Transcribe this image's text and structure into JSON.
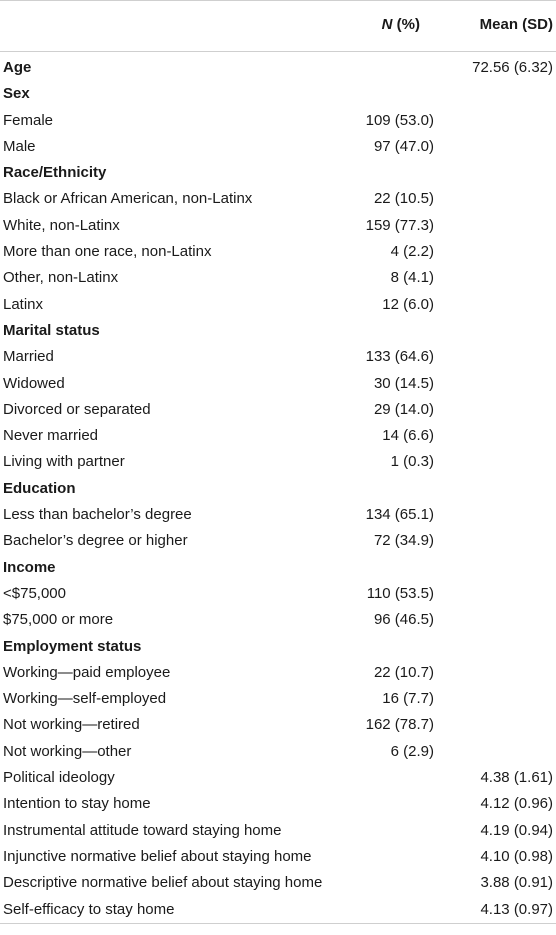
{
  "header": {
    "n_italic": "N",
    "n_suffix": " (%)",
    "mean_label": "Mean (SD)"
  },
  "rows": [
    {
      "label": "Age",
      "section": true,
      "n": "",
      "mean": "72.56 (6.32)"
    },
    {
      "label": "Sex",
      "section": true,
      "n": "",
      "mean": ""
    },
    {
      "label": "Female",
      "section": false,
      "n": "109 (53.0)",
      "mean": ""
    },
    {
      "label": "Male",
      "section": false,
      "n": "97 (47.0)",
      "mean": ""
    },
    {
      "label": "Race/Ethnicity",
      "section": true,
      "n": "",
      "mean": ""
    },
    {
      "label": "Black or African American, non-Latinx",
      "section": false,
      "n": "22 (10.5)",
      "mean": ""
    },
    {
      "label": "White, non-Latinx",
      "section": false,
      "n": "159 (77.3)",
      "mean": ""
    },
    {
      "label": "More than one race, non-Latinx",
      "section": false,
      "n": "4 (2.2)",
      "mean": ""
    },
    {
      "label": "Other, non-Latinx",
      "section": false,
      "n": "8 (4.1)",
      "mean": ""
    },
    {
      "label": "Latinx",
      "section": false,
      "n": "12 (6.0)",
      "mean": ""
    },
    {
      "label": "Marital status",
      "section": true,
      "n": "",
      "mean": ""
    },
    {
      "label": "Married",
      "section": false,
      "n": "133 (64.6)",
      "mean": ""
    },
    {
      "label": "Widowed",
      "section": false,
      "n": "30 (14.5)",
      "mean": ""
    },
    {
      "label": "Divorced or separated",
      "section": false,
      "n": "29 (14.0)",
      "mean": ""
    },
    {
      "label": "Never married",
      "section": false,
      "n": "14 (6.6)",
      "mean": ""
    },
    {
      "label": "Living with partner",
      "section": false,
      "n": "1 (0.3)",
      "mean": ""
    },
    {
      "label": "Education",
      "section": true,
      "n": "",
      "mean": ""
    },
    {
      "label": "Less than bachelor’s degree",
      "section": false,
      "n": "134 (65.1)",
      "mean": ""
    },
    {
      "label": "Bachelor’s degree or higher",
      "section": false,
      "n": "72 (34.9)",
      "mean": ""
    },
    {
      "label": "Income",
      "section": true,
      "n": "",
      "mean": ""
    },
    {
      "label": "<$75,000",
      "section": false,
      "n": "110 (53.5)",
      "mean": ""
    },
    {
      "label": "$75,000 or more",
      "section": false,
      "n": "96 (46.5)",
      "mean": ""
    },
    {
      "label": "Employment status",
      "section": true,
      "n": "",
      "mean": ""
    },
    {
      "label": "Working—paid employee",
      "section": false,
      "n": "22 (10.7)",
      "mean": ""
    },
    {
      "label": "Working—self-employed",
      "section": false,
      "n": "16 (7.7)",
      "mean": ""
    },
    {
      "label": "Not working—retired",
      "section": false,
      "n": "162 (78.7)",
      "mean": ""
    },
    {
      "label": "Not working—other",
      "section": false,
      "n": "6 (2.9)",
      "mean": ""
    },
    {
      "label": "Political ideology",
      "section": false,
      "n": "",
      "mean": "4.38 (1.61)"
    },
    {
      "label": "Intention to stay home",
      "section": false,
      "n": "",
      "mean": "4.12 (0.96)"
    },
    {
      "label": "Instrumental attitude toward staying home",
      "section": false,
      "n": "",
      "mean": "4.19 (0.94)"
    },
    {
      "label": "Injunctive normative belief about staying home",
      "section": false,
      "n": "",
      "mean": "4.10 (0.98)"
    },
    {
      "label": "Descriptive normative belief about staying home",
      "section": false,
      "n": "",
      "mean": "3.88 (0.91)"
    },
    {
      "label": "Self-efficacy to stay home",
      "section": false,
      "n": "",
      "mean": "4.13 (0.97)"
    }
  ]
}
